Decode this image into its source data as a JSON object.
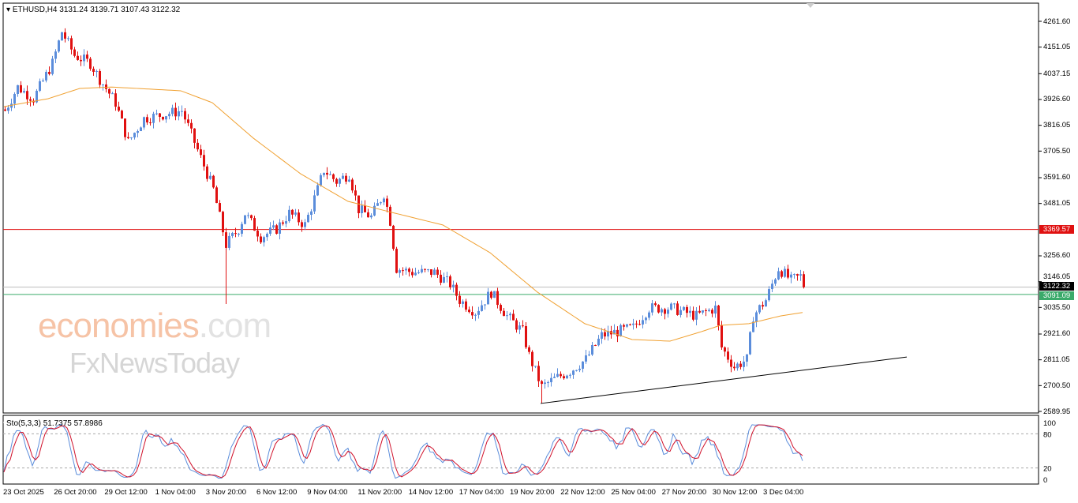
{
  "header": {
    "title": "ETHUSD,H4  3131.24 3139.71 3107.43 3122.32"
  },
  "indicator": {
    "title": "Sto(5,3,3) 51.7375 57.8986",
    "levels": [
      "100",
      "80",
      "20",
      "0"
    ]
  },
  "price_axis": [
    "4261.60",
    "4151.05",
    "4037.15",
    "3926.60",
    "3816.05",
    "3705.50",
    "3591.60",
    "3481.05",
    "3256.60",
    "3146.05",
    "3035.50",
    "2921.60",
    "2811.05",
    "2700.50",
    "2589.95"
  ],
  "tags": {
    "resistance": "3369.57",
    "current": "3122.32",
    "support": "3091.09"
  },
  "colors": {
    "up": "#5b8ddb",
    "down": "#e01010",
    "ma": "#f0a030",
    "resistance": "#e01010",
    "support": "#3aaa6a",
    "sto_main": "#5b8ddb",
    "sto_signal": "#d0102a"
  },
  "dates": [
    "23 Oct 2025",
    "26 Oct 20:00",
    "29 Oct 12:00",
    "1 Nov 04:00",
    "3 Nov 20:00",
    "6 Nov 12:00",
    "9 Nov 04:00",
    "11 Nov 20:00",
    "14 Nov 12:00",
    "17 Nov 04:00",
    "19 Nov 20:00",
    "22 Nov 12:00",
    "25 Nov 04:00",
    "27 Nov 20:00",
    "30 Nov 12:00",
    "3 Dec 04:00"
  ],
  "watermark": {
    "brand1a": "economies",
    "brand1b": ".com",
    "brand2": "FxNewsToday"
  },
  "chart_data": {
    "type": "candlestick",
    "symbol": "ETHUSD",
    "timeframe": "H4",
    "ylim": [
      2589.95,
      4261.6
    ],
    "close_waypoints": [
      [
        0,
        3879
      ],
      [
        4,
        3980
      ],
      [
        9,
        3930
      ],
      [
        15,
        4082
      ],
      [
        18,
        4217
      ],
      [
        22,
        4116
      ],
      [
        27,
        4082
      ],
      [
        30,
        4014
      ],
      [
        35,
        3913
      ],
      [
        39,
        3744
      ],
      [
        44,
        3845
      ],
      [
        56,
        3879
      ],
      [
        60,
        3744
      ],
      [
        66,
        3541
      ],
      [
        70,
        3304
      ],
      [
        74,
        3372
      ],
      [
        76,
        3439
      ],
      [
        81,
        3338
      ],
      [
        86,
        3372
      ],
      [
        90,
        3439
      ],
      [
        95,
        3389
      ],
      [
        99,
        3541
      ],
      [
        101,
        3625
      ],
      [
        105,
        3575
      ],
      [
        109,
        3608
      ],
      [
        112,
        3456
      ],
      [
        116,
        3423
      ],
      [
        120,
        3524
      ],
      [
        122,
        3406
      ],
      [
        124,
        3203
      ],
      [
        129,
        3186
      ],
      [
        136,
        3186
      ],
      [
        141,
        3135
      ],
      [
        144,
        3067
      ],
      [
        149,
        3016
      ],
      [
        154,
        3101
      ],
      [
        159,
        2999
      ],
      [
        164,
        2932
      ],
      [
        166,
        2830
      ],
      [
        170,
        2695
      ],
      [
        174,
        2729
      ],
      [
        179,
        2763
      ],
      [
        184,
        2813
      ],
      [
        189,
        2915
      ],
      [
        194,
        2932
      ],
      [
        199,
        2949
      ],
      [
        204,
        3033
      ],
      [
        211,
        3033
      ],
      [
        219,
        2999
      ],
      [
        225,
        3033
      ],
      [
        227,
        2864
      ],
      [
        231,
        2780
      ],
      [
        235,
        2813
      ],
      [
        237,
        2999
      ],
      [
        241,
        3067
      ],
      [
        245,
        3203
      ],
      [
        249,
        3152
      ],
      [
        252,
        3169
      ],
      [
        253,
        3122
      ]
    ],
    "ma_waypoints": [
      [
        0,
        3896
      ],
      [
        14,
        3930
      ],
      [
        24,
        3974
      ],
      [
        34,
        3980
      ],
      [
        56,
        3964
      ],
      [
        66,
        3913
      ],
      [
        79,
        3761
      ],
      [
        94,
        3608
      ],
      [
        109,
        3490
      ],
      [
        124,
        3439
      ],
      [
        139,
        3389
      ],
      [
        154,
        3270
      ],
      [
        169,
        3101
      ],
      [
        184,
        2966
      ],
      [
        199,
        2898
      ],
      [
        211,
        2891
      ],
      [
        221,
        2932
      ],
      [
        227,
        2959
      ],
      [
        236,
        2966
      ],
      [
        246,
        2999
      ],
      [
        254,
        3016
      ]
    ],
    "horizontal_lines": {
      "resistance": 3369.57,
      "support": 3091.09,
      "current": 3122.32
    },
    "trendline": [
      [
        170,
        2624
      ],
      [
        286,
        2823
      ]
    ],
    "stochastic": {
      "k": 5,
      "d": 3,
      "slowing": 3,
      "main": 51.7375,
      "signal": 57.8986
    }
  }
}
